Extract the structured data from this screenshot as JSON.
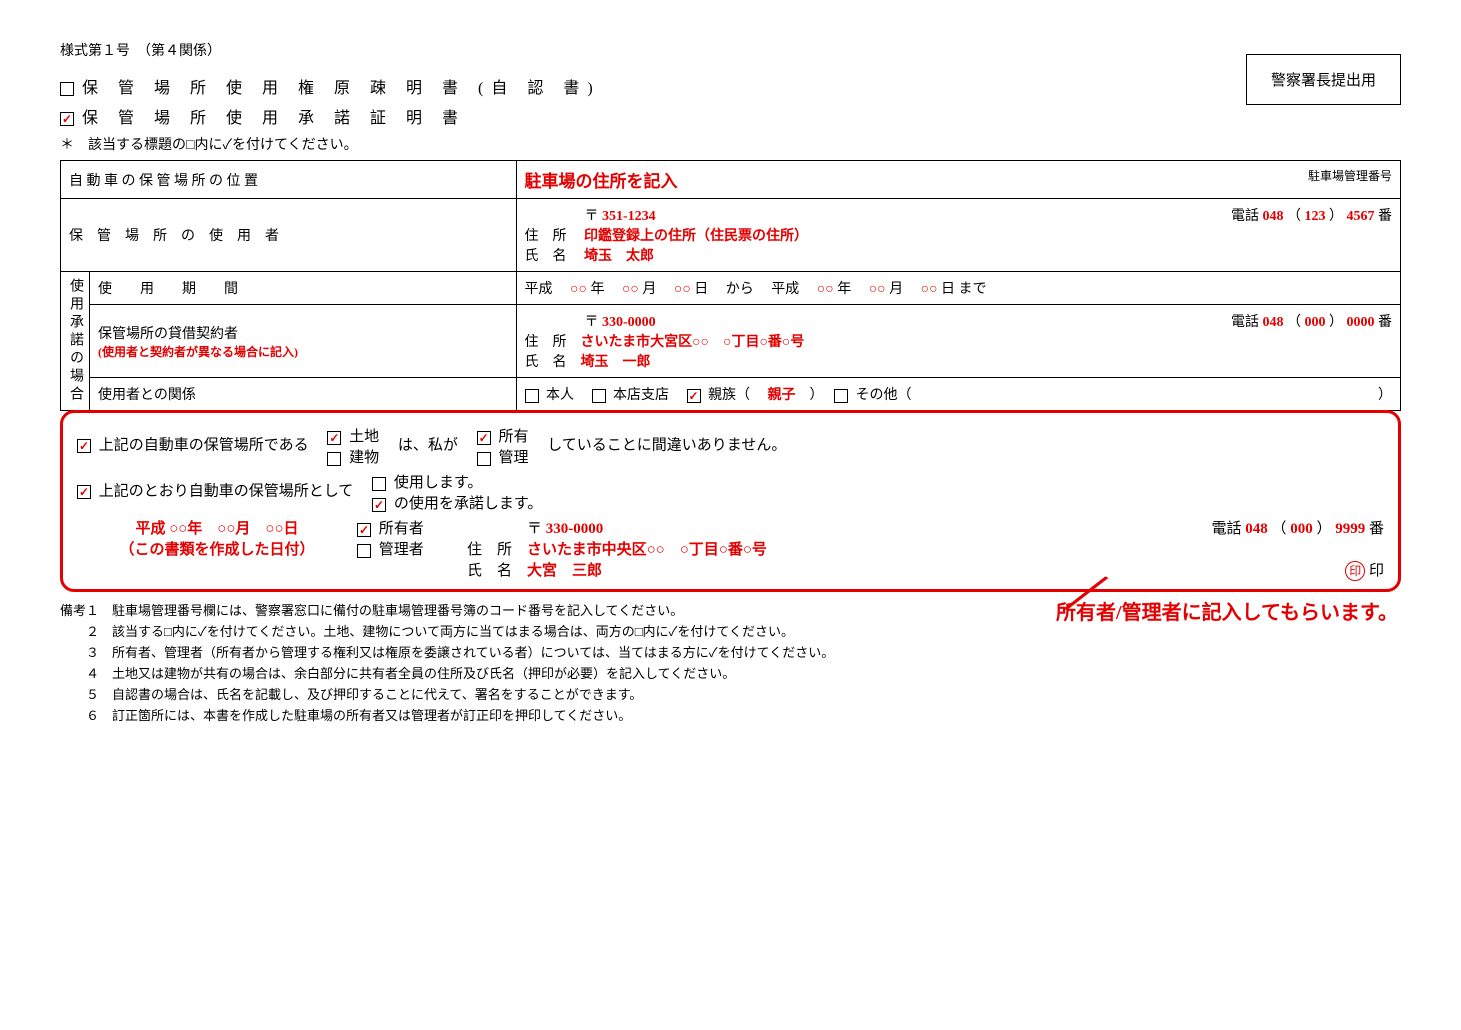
{
  "form_header": "様式第１号　（第４関係）",
  "title1": "保 管 場 所 使 用 権 原 疎 明 書 (自 認 書)",
  "title1_checked": false,
  "title2": "保 管 場 所 使 用 承 諾 証 明 書",
  "title2_checked": true,
  "check_note": "＊　該当する標題の□内に✓を付けてください。",
  "police_box": "警察署長提出用",
  "row_location": {
    "label": "自 動 車 の 保 管 場 所 の 位 置",
    "hint": "駐車場の住所を記入",
    "mgmt_label": "駐車場管理番号"
  },
  "row_user": {
    "label": "保　管　場　所　の　使　用　者",
    "postal_mark": "〒",
    "postal": "351-1234",
    "addr_label": "住　所",
    "addr_hint": "印鑑登録上の住所（住民票の住所）",
    "name_label": "氏　名",
    "name": "埼玉　太郎",
    "tel_label": "電話",
    "tel1": "048",
    "tel2": "123",
    "tel3": "4567",
    "tel_suffix": "番"
  },
  "consent_header": "使用承諾の場合",
  "row_period": {
    "label": "使　　用　　期　　間",
    "era": "平成",
    "circle": "○○",
    "y": "年",
    "m": "月",
    "d": "日",
    "from": "から",
    "to": "まで"
  },
  "row_lessee": {
    "label": "保管場所の貸借契約者",
    "sub": "(使用者と契約者が異なる場合に記入)",
    "postal": "330-0000",
    "addr": "さいたま市大宮区○○　○丁目○番○号",
    "name": "埼玉　一郎",
    "tel1": "048",
    "tel2": "000",
    "tel3": "0000"
  },
  "row_relation": {
    "label": "使用者との関係",
    "opt1": "本人",
    "opt2": "本店支店",
    "opt3": "親族（",
    "opt3_val": "親子",
    "opt4": "その他（"
  },
  "dec1": {
    "pre": "上記の自動車の保管場所である",
    "land": "土地",
    "bldg": "建物",
    "mid": "は、私が",
    "own": "所有",
    "mgr": "管理",
    "post": "していることに間違いありません。"
  },
  "dec2": {
    "pre": "上記のとおり自動車の保管場所として",
    "use": "使用します。",
    "consent": "の使用を承諾します。"
  },
  "dec_date": {
    "line": "平成 ○○年　○○月　○○日",
    "sub": "（この書類を作成した日付）"
  },
  "owner": {
    "owner_label": "所有者",
    "mgr_label": "管理者",
    "postal": "330-0000",
    "addr": "さいたま市中央区○○　○丁目○番○号",
    "name": "大宮　三郎",
    "tel1": "048",
    "tel2": "000",
    "tel3": "9999",
    "stamp": "印",
    "stamp_label": "印"
  },
  "big_note": "所有者/管理者に記入してもらいます。",
  "notes": [
    "備考１　駐車場管理番号欄には、警察署窓口に備付の駐車場管理番号簿のコード番号を記入してください。",
    "　　２　該当する□内に✓を付けてください。土地、建物について両方に当てはまる場合は、両方の□内に✓を付けてください。",
    "　　３　所有者、管理者（所有者から管理する権利又は権原を委譲されている者）については、当てはまる方に✓を付けてください。",
    "　　４　土地又は建物が共有の場合は、余白部分に共有者全員の住所及び氏名（押印が必要）を記入してください。",
    "　　５　自認書の場合は、氏名を記載し、及び押印することに代えて、署名をすることができます。",
    "　　６　訂正箇所には、本書を作成した駐車場の所有者又は管理者が訂正印を押印してください。"
  ],
  "colors": {
    "red": "#e40000",
    "border": "#000000",
    "bg": "#ffffff"
  },
  "typography": {
    "body_fontsize": 15,
    "table_fontsize": 14,
    "notes_fontsize": 13
  }
}
